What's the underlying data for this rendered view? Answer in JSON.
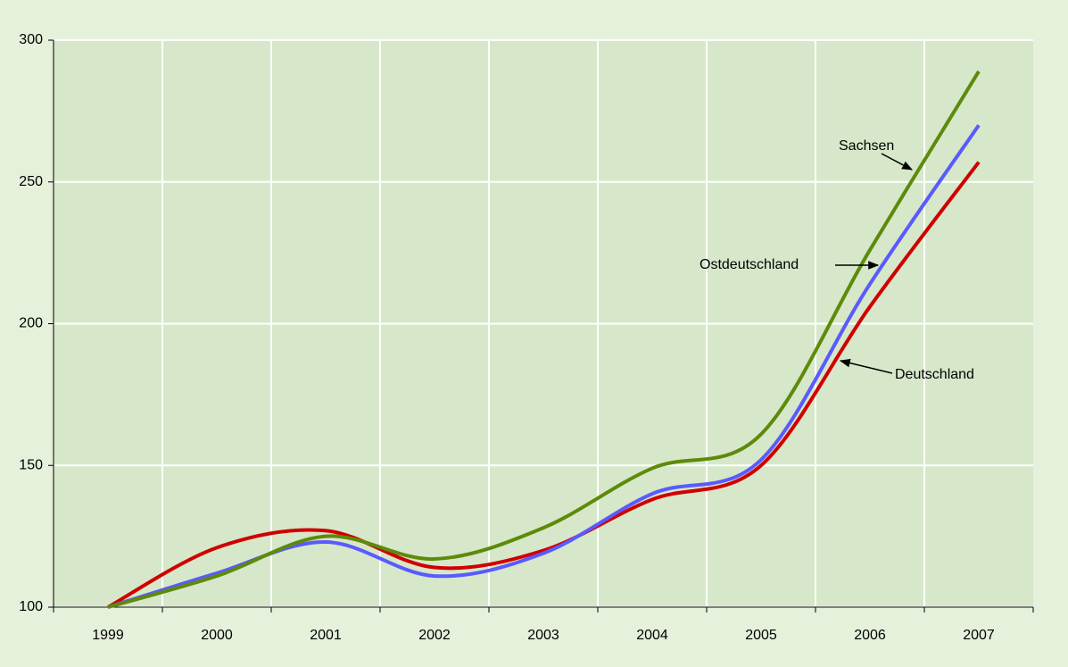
{
  "chart_data": {
    "type": "line",
    "categories": [
      "1999",
      "2000",
      "2001",
      "2002",
      "2003",
      "2004",
      "2005",
      "2006",
      "2007"
    ],
    "series": [
      {
        "name": "Sachsen",
        "color": "#5e8a0a",
        "values": [
          100,
          111,
          125,
          117,
          128,
          149,
          161,
          226,
          289
        ]
      },
      {
        "name": "Ostdeutschland",
        "color": "#5a5aff",
        "values": [
          100,
          112,
          123,
          111,
          119,
          140,
          152,
          214,
          270
        ]
      },
      {
        "name": "Deutschland",
        "color": "#d00000",
        "values": [
          100,
          121,
          127,
          114,
          120,
          138,
          150,
          206,
          257
        ]
      }
    ],
    "annotations": [
      "Sachsen",
      "Ostdeutschland",
      "Deutschland"
    ],
    "ylim": [
      100,
      300
    ],
    "yticks": [
      100,
      150,
      200,
      250,
      300
    ],
    "grid": true
  }
}
